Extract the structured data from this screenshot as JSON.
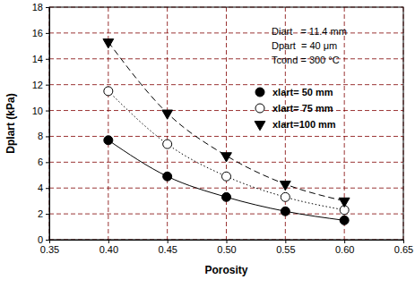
{
  "chart_data": {
    "type": "line",
    "x_label": "Porosity",
    "y_label": "Dplart (kPa)",
    "annotations": [
      "Diart   = 11.4 mm",
      "Dpart  = 40 μm",
      "Tcond = 300 °C"
    ],
    "x": [
      0.4,
      0.45,
      0.5,
      0.55,
      0.6
    ],
    "series": [
      {
        "name": "xlart= 50 mm",
        "color": "#000000",
        "marker": "circle",
        "line_style": "solid",
        "values": [
          7.7,
          4.9,
          3.3,
          2.2,
          1.5
        ]
      },
      {
        "name": "xlart= 75 mm",
        "color": "#000000",
        "marker": "open-circle",
        "line_style": "dotted",
        "values": [
          11.5,
          7.4,
          4.9,
          3.3,
          2.3
        ]
      },
      {
        "name": "xlart=100 mm",
        "color": "#000000",
        "marker": "triangle-down",
        "line_style": "dashed",
        "values": [
          15.3,
          9.8,
          6.5,
          4.3,
          3.0
        ]
      }
    ],
    "xlim": [
      0.35,
      0.65
    ],
    "xticks": [
      0.35,
      {
        "value": 0.4,
        "label": "0.40"
      },
      0.45,
      {
        "value": 0.5,
        "label": "0.50"
      },
      0.55,
      {
        "value": 0.6,
        "label": "0.60"
      },
      0.65
    ],
    "ylim": [
      0,
      18
    ],
    "yticks": [
      0,
      2,
      4,
      6,
      8,
      10,
      12,
      14,
      16,
      18
    ],
    "grid": true,
    "legend": "upper right"
  }
}
